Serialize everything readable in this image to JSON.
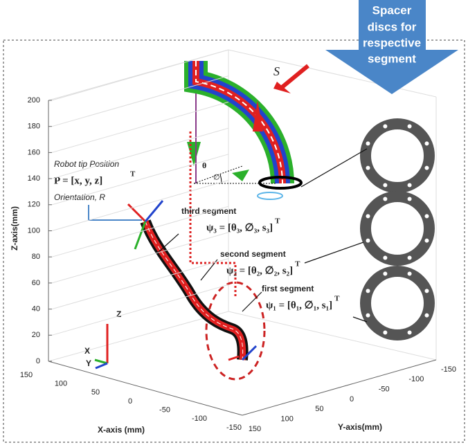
{
  "spacer_callout": [
    "Spacer",
    "discs for",
    "respective",
    "segment"
  ],
  "axes": {
    "z_label": "Z-axis(mm)",
    "x_label": "X-axis (mm)",
    "y_label": "Y-axis(mm)",
    "z_ticks": [
      0,
      20,
      40,
      60,
      80,
      100,
      120,
      140,
      160,
      180,
      200
    ],
    "x_ticks": [
      150,
      100,
      50,
      0,
      -50,
      -100,
      -150
    ],
    "y_ticks": [
      150,
      100,
      50,
      0,
      -50,
      -100,
      -150
    ]
  },
  "tip": {
    "label": "Robot tip Position",
    "position": "P = [x, y, z]",
    "position_sup": "T",
    "orientation": "Orientation, R"
  },
  "segments": [
    {
      "name": "third segment",
      "formula": "ψ₃ = [θ₃, ∅₃, s₃]",
      "sup": "T"
    },
    {
      "name": "second segment",
      "formula": "ψ₂ = [θ₂, ∅₂, s₂]",
      "sup": "T"
    },
    {
      "name": "first segment",
      "formula": "ψ₁ = [θ₁, ∅₁, s₁]",
      "sup": "T"
    }
  ],
  "inset": {
    "arc_label": "S",
    "theta": "θ",
    "phi": "∅"
  },
  "frame": {
    "z": "Z",
    "x": "X",
    "y": "Y"
  }
}
